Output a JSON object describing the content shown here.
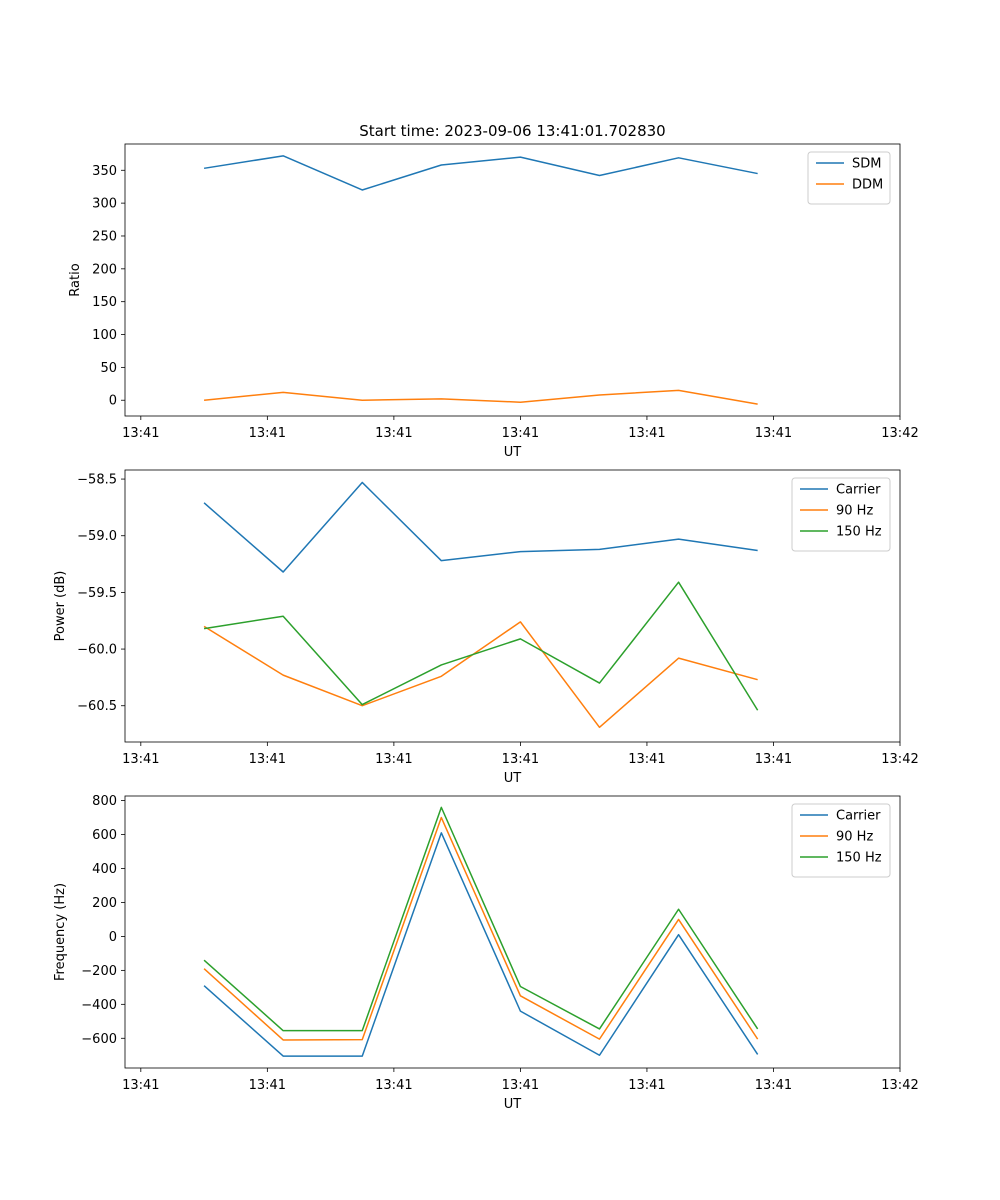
{
  "figure_title": "Start time: 2023-09-06 13:41:01.702830",
  "colors": {
    "c0": "#1f77b4",
    "c1": "#ff7f0e",
    "c2": "#2ca02c",
    "axis": "#000000"
  },
  "chart_data": [
    {
      "type": "line",
      "title": "Start time: 2023-09-06 13:41:01.702830",
      "xlabel": "UT",
      "ylabel": "Ratio",
      "xlim": [
        -0.6,
        9.2
      ],
      "ylim": [
        -24,
        390
      ],
      "xticks": [
        -0.4,
        1.2,
        2.8,
        4.4,
        6.0,
        7.6,
        9.2
      ],
      "xtick_labels": [
        "13:41",
        "13:41",
        "13:41",
        "13:41",
        "13:41",
        "13:41",
        "13:42"
      ],
      "yticks": [
        0,
        50,
        100,
        150,
        200,
        250,
        300,
        350
      ],
      "ytick_labels": [
        "0",
        "50",
        "100",
        "150",
        "200",
        "250",
        "300",
        "350"
      ],
      "x": [
        0.4,
        1.4,
        2.4,
        3.4,
        4.4,
        5.4,
        6.4,
        7.4
      ],
      "series": [
        {
          "name": "SDM",
          "color": "#1f77b4",
          "values": [
            353,
            372,
            320,
            358,
            370,
            342,
            369,
            345
          ]
        },
        {
          "name": "DDM",
          "color": "#ff7f0e",
          "values": [
            0,
            12,
            0,
            2,
            -3,
            8,
            15,
            -6
          ]
        }
      ],
      "legend": "top-right"
    },
    {
      "type": "line",
      "title": "",
      "xlabel": "UT",
      "ylabel": "Power (dB)",
      "xlim": [
        -0.6,
        9.2
      ],
      "ylim": [
        -60.82,
        -58.42
      ],
      "xticks": [
        -0.4,
        1.2,
        2.8,
        4.4,
        6.0,
        7.6,
        9.2
      ],
      "xtick_labels": [
        "13:41",
        "13:41",
        "13:41",
        "13:41",
        "13:41",
        "13:41",
        "13:42"
      ],
      "yticks": [
        -60.5,
        -60.0,
        -59.5,
        -59.0,
        -58.5
      ],
      "ytick_labels": [
        "−60.5",
        "−60.0",
        "−59.5",
        "−59.0",
        "−58.5"
      ],
      "x": [
        0.4,
        1.4,
        2.4,
        3.4,
        4.4,
        5.4,
        6.4,
        7.4
      ],
      "series": [
        {
          "name": "Carrier",
          "color": "#1f77b4",
          "values": [
            -58.71,
            -59.32,
            -58.53,
            -59.22,
            -59.14,
            -59.12,
            -59.03,
            -59.13
          ]
        },
        {
          "name": "90 Hz",
          "color": "#ff7f0e",
          "values": [
            -59.8,
            -60.23,
            -60.5,
            -60.24,
            -59.76,
            -60.69,
            -60.08,
            -60.27
          ]
        },
        {
          "name": "150 Hz",
          "color": "#2ca02c",
          "values": [
            -59.82,
            -59.71,
            -60.49,
            -60.14,
            -59.91,
            -60.3,
            -59.41,
            -60.54
          ]
        }
      ],
      "legend": "top-right"
    },
    {
      "type": "line",
      "title": "",
      "xlabel": "UT",
      "ylabel": "Frequency (Hz)",
      "xlim": [
        -0.6,
        9.2
      ],
      "ylim": [
        -775,
        827
      ],
      "xticks": [
        -0.4,
        1.2,
        2.8,
        4.4,
        6.0,
        7.6,
        9.2
      ],
      "xtick_labels": [
        "13:41",
        "13:41",
        "13:41",
        "13:41",
        "13:41",
        "13:41",
        "13:42"
      ],
      "yticks": [
        -600,
        -400,
        -200,
        0,
        200,
        400,
        600,
        800
      ],
      "ytick_labels": [
        "−600",
        "−400",
        "−200",
        "0",
        "200",
        "400",
        "600",
        "800"
      ],
      "x": [
        0.4,
        1.4,
        2.4,
        3.4,
        4.4,
        5.4,
        6.4,
        7.4
      ],
      "series": [
        {
          "name": "Carrier",
          "color": "#1f77b4",
          "values": [
            -290,
            -705,
            -705,
            610,
            -440,
            -700,
            10,
            -695
          ]
        },
        {
          "name": "90 Hz",
          "color": "#ff7f0e",
          "values": [
            -190,
            -610,
            -608,
            700,
            -350,
            -605,
            100,
            -605
          ]
        },
        {
          "name": "150 Hz",
          "color": "#2ca02c",
          "values": [
            -140,
            -555,
            -555,
            760,
            -295,
            -545,
            160,
            -545
          ]
        }
      ],
      "legend": "top-right"
    }
  ]
}
